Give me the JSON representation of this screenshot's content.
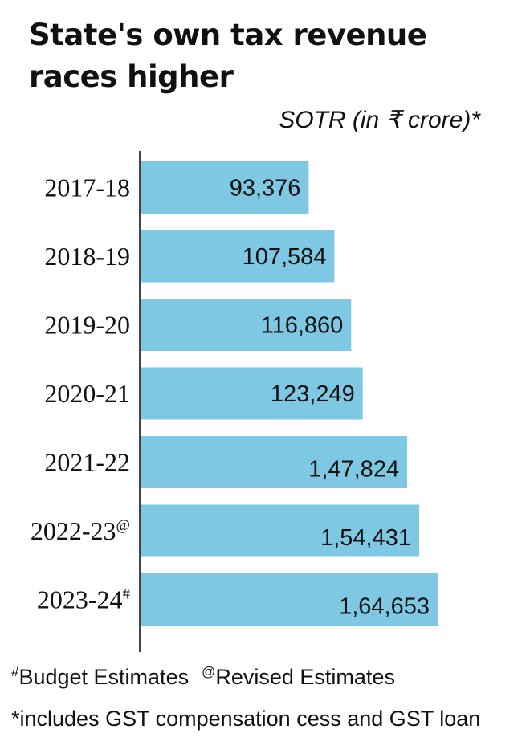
{
  "title_lines": [
    "State's own tax revenue",
    "races higher"
  ],
  "footnotes": {
    "budget_marker": "#",
    "budget_text": "Budget Estimates",
    "revised_marker": "@",
    "revised_text": "Revised Estimates",
    "note": "*includes GST compensation cess and GST loan"
  },
  "colors": {
    "bar": "#7ec8e3",
    "axis": "#444444",
    "text": "#111111"
  },
  "chart_data": {
    "type": "bar",
    "orientation": "horizontal",
    "title": "State's own tax revenue races higher",
    "subtitle": "SOTR (in ₹ crore)*",
    "categories": [
      "2017-18",
      "2018-19",
      "2019-20",
      "2020-21",
      "2021-22",
      "2022-23",
      "2023-24"
    ],
    "category_marks": [
      "",
      "",
      "",
      "",
      "",
      "@",
      "#"
    ],
    "values": [
      93376,
      107584,
      116860,
      123249,
      147824,
      154431,
      164653
    ],
    "value_labels": [
      "93,376",
      "107,584",
      "116,860",
      "123,249",
      "1,47,824",
      "1,54,431",
      "1,64,653"
    ],
    "xlim": [
      0,
      164653
    ],
    "grid": false,
    "legend": "none"
  }
}
